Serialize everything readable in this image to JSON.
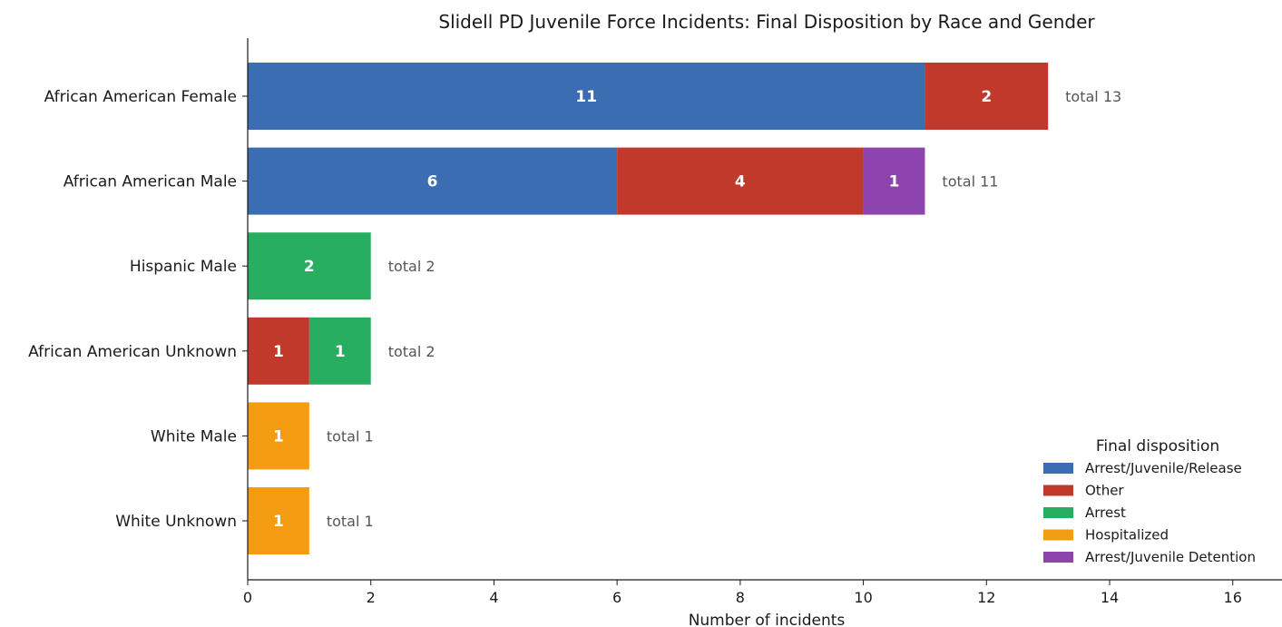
{
  "chart_data": {
    "type": "bar",
    "orientation": "horizontal",
    "stacked": true,
    "title": "Slidell PD Juvenile Force Incidents: Final Disposition by Race and Gender",
    "xlabel": "Number of incidents",
    "ylabel": "",
    "xlim": [
      0,
      16.8
    ],
    "xticks": [
      0,
      2,
      4,
      6,
      8,
      10,
      12,
      14,
      16
    ],
    "grid": false,
    "legend_title": "Final disposition",
    "legend_position": "bottom-right",
    "total_prefix": "total",
    "categories": [
      "African American Female",
      "African American Male",
      "Hispanic Male",
      "African American Unknown",
      "White Male",
      "White Unknown"
    ],
    "series": [
      {
        "name": "Arrest/Juvenile/Release",
        "color": "#3a6db1",
        "values": [
          11,
          6,
          0,
          0,
          0,
          0
        ]
      },
      {
        "name": "Other",
        "color": "#c0392b",
        "values": [
          2,
          4,
          0,
          1,
          0,
          0
        ]
      },
      {
        "name": "Arrest",
        "color": "#27ae60",
        "values": [
          0,
          0,
          2,
          1,
          0,
          0
        ]
      },
      {
        "name": "Hospitalized",
        "color": "#f39c12",
        "values": [
          0,
          0,
          0,
          0,
          1,
          1
        ]
      },
      {
        "name": "Arrest/Juvenile Detention",
        "color": "#8e44ad",
        "values": [
          0,
          1,
          0,
          0,
          0,
          0
        ]
      }
    ]
  }
}
